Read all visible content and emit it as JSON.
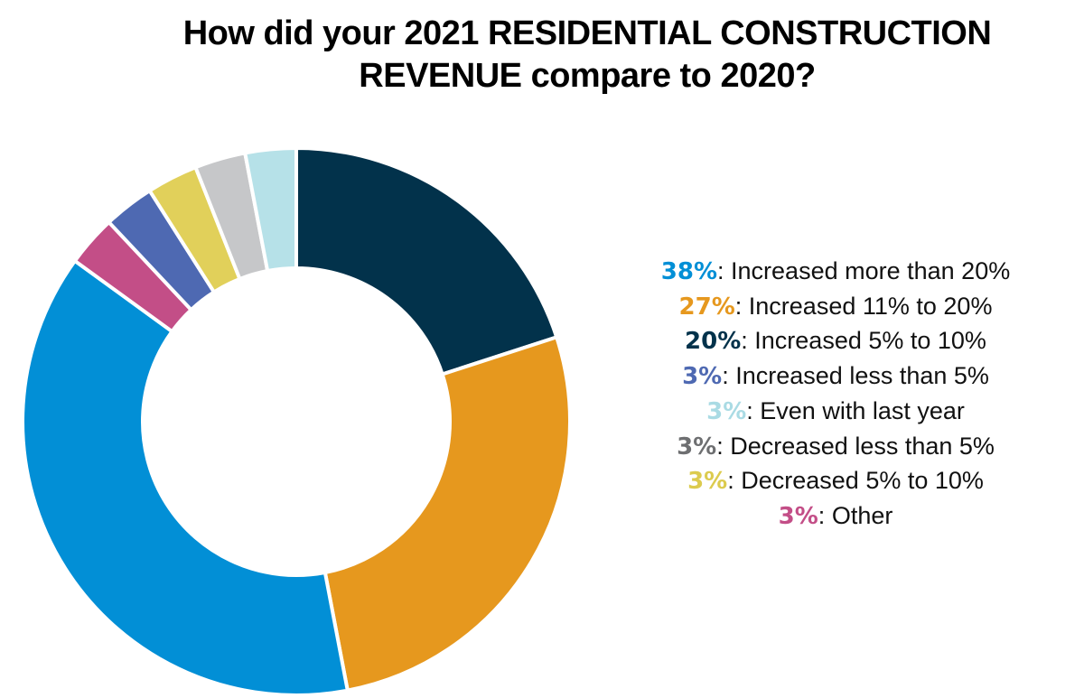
{
  "chart_data": {
    "type": "pie",
    "style": "donut",
    "title": "How did your 2021 RESIDENTIAL CONSTRUCTION REVENUE compare to 2020?",
    "title_lines": [
      "How did your 2021 RESIDENTIAL CONSTRUCTION",
      "REVENUE compare to 2020?"
    ],
    "legend_position": "right",
    "slices": [
      {
        "label": "Increased 5% to 10%",
        "value": 20,
        "pct_label": "20%",
        "color": "#02324b"
      },
      {
        "label": "Increased 11% to 20%",
        "value": 27,
        "pct_label": "27%",
        "color": "#e6981e"
      },
      {
        "label": "Increased more than 20%",
        "value": 38,
        "pct_label": "38%",
        "color": "#028fd6"
      },
      {
        "label": "Other",
        "value": 3,
        "pct_label": "3%",
        "color": "#c34e87"
      },
      {
        "label": "Increased less than 5%",
        "value": 3,
        "pct_label": "3%",
        "color": "#4e69b2"
      },
      {
        "label": "Decreased 5% to 10%",
        "value": 3,
        "pct_label": "3%",
        "color": "#e1d05a"
      },
      {
        "label": "Decreased less than 5%",
        "value": 3,
        "pct_label": "3%",
        "color": "#c6c7c9"
      },
      {
        "label": "Even with last year",
        "value": 3,
        "pct_label": "3%",
        "color": "#b6e1e8"
      }
    ],
    "legend": [
      {
        "pct": "38%",
        "sep": ": ",
        "text": "Increased more than 20%",
        "color": "#028fd6"
      },
      {
        "pct": "27%",
        "sep": ": ",
        "text": "Increased 11% to 20%",
        "color": "#e6981e"
      },
      {
        "pct": "20%",
        "sep": ": ",
        "text": "Increased 5% to 10%",
        "color": "#02324b"
      },
      {
        "pct": "3%",
        "sep": ": ",
        "text": "Increased less than 5%",
        "color": "#4e69b2"
      },
      {
        "pct": "3%",
        "sep": ": ",
        "text": "Even with last year",
        "color": "#aadbe4"
      },
      {
        "pct": "3%",
        "sep": ": ",
        "text": "Decreased less than 5%",
        "color": "#6e6f71"
      },
      {
        "pct": "3%",
        "sep": ": ",
        "text": "Decreased 5% to 10%",
        "color": "#dccb4e"
      },
      {
        "pct": "3%",
        "sep": ": ",
        "text": "Other",
        "color": "#c34e87"
      }
    ]
  }
}
